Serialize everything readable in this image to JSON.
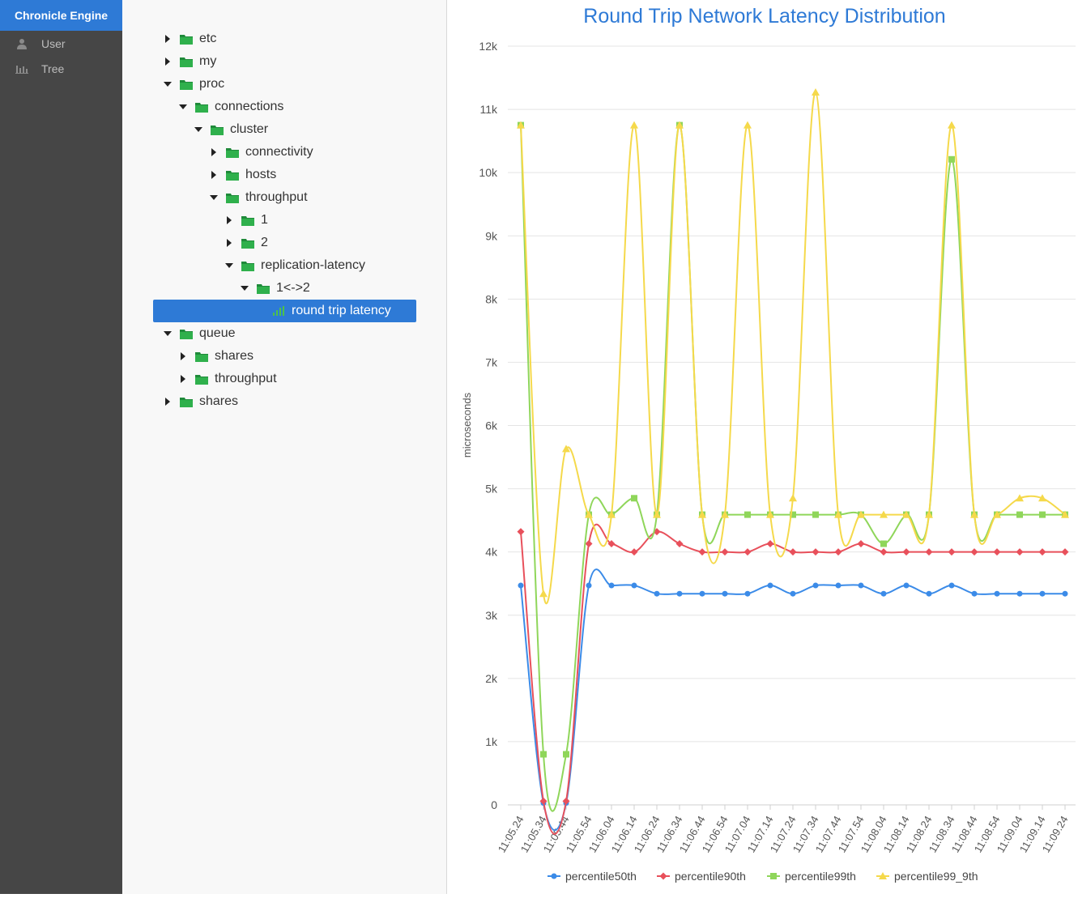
{
  "app": {
    "title": "Chronicle Engine"
  },
  "nav": [
    {
      "label": "User",
      "icon": "user-icon"
    },
    {
      "label": "Tree",
      "icon": "bar-chart-icon"
    }
  ],
  "tree": [
    {
      "label": "etc",
      "depth": 0,
      "state": "collapsed",
      "type": "folder"
    },
    {
      "label": "my",
      "depth": 0,
      "state": "collapsed",
      "type": "folder"
    },
    {
      "label": "proc",
      "depth": 0,
      "state": "expanded",
      "type": "folder"
    },
    {
      "label": "connections",
      "depth": 1,
      "state": "expanded",
      "type": "folder"
    },
    {
      "label": "cluster",
      "depth": 2,
      "state": "expanded",
      "type": "folder"
    },
    {
      "label": "connectivity",
      "depth": 3,
      "state": "collapsed",
      "type": "folder"
    },
    {
      "label": "hosts",
      "depth": 3,
      "state": "collapsed",
      "type": "folder"
    },
    {
      "label": "throughput",
      "depth": 3,
      "state": "expanded",
      "type": "folder"
    },
    {
      "label": "1",
      "depth": 4,
      "state": "collapsed",
      "type": "folder"
    },
    {
      "label": "2",
      "depth": 4,
      "state": "collapsed",
      "type": "folder"
    },
    {
      "label": "replication-latency",
      "depth": 4,
      "state": "expanded",
      "type": "folder"
    },
    {
      "label": "1<->2",
      "depth": 5,
      "state": "expanded",
      "type": "folder"
    },
    {
      "label": "round trip latency",
      "depth": 6,
      "state": "leaf",
      "type": "chart",
      "selected": true
    },
    {
      "label": "queue",
      "depth": 0,
      "state": "expanded",
      "type": "folder"
    },
    {
      "label": "shares",
      "depth": 1,
      "state": "collapsed",
      "type": "folder"
    },
    {
      "label": "throughput",
      "depth": 1,
      "state": "collapsed",
      "type": "folder"
    },
    {
      "label": "shares",
      "depth": 0,
      "state": "collapsed",
      "type": "folder"
    }
  ],
  "colors": {
    "brand": "#2e7ad6",
    "sidebar": "#464646",
    "folder": "#2fa84a"
  },
  "chart_data": {
    "type": "line",
    "title": "Round Trip Network Latency Distribution",
    "xlabel": "",
    "ylabel": "microseconds",
    "ylim": [
      0,
      12000
    ],
    "yticks": [
      "0",
      "1k",
      "2k",
      "3k",
      "4k",
      "5k",
      "6k",
      "7k",
      "8k",
      "9k",
      "10k",
      "11k",
      "12k"
    ],
    "grid": true,
    "legend_position": "bottom",
    "categories": [
      "11:05.24",
      "11:05.34",
      "11:05.44",
      "11:05.54",
      "11:06.04",
      "11:06.14",
      "11:06.24",
      "11:06.34",
      "11:06.44",
      "11:06.54",
      "11:07.04",
      "11:07.14",
      "11:07.24",
      "11:07.34",
      "11:07.44",
      "11:07.54",
      "11:08.04",
      "11:08.14",
      "11:08.24",
      "11:08.34",
      "11:08.44",
      "11:08.54",
      "11:09.04",
      "11:09.14",
      "11:09.24"
    ],
    "series": [
      {
        "name": "percentile50th",
        "color": "#3b8be8",
        "marker": "circle",
        "values": [
          3470,
          30,
          30,
          3470,
          3470,
          3470,
          3340,
          3340,
          3340,
          3340,
          3340,
          3470,
          3340,
          3470,
          3470,
          3470,
          3340,
          3470,
          3340,
          3470,
          3340,
          3340,
          3340,
          3340,
          3340
        ]
      },
      {
        "name": "percentile90th",
        "color": "#e8505b",
        "marker": "diamond",
        "values": [
          4320,
          60,
          60,
          4130,
          4130,
          4000,
          4320,
          4130,
          4000,
          4000,
          4000,
          4130,
          4000,
          4000,
          4000,
          4130,
          4000,
          4000,
          4000,
          4000,
          4000,
          4000,
          4000,
          4000,
          4000
        ]
      },
      {
        "name": "percentile99th",
        "color": "#8fd65a",
        "marker": "square",
        "values": [
          10750,
          800,
          800,
          4590,
          4590,
          4850,
          4590,
          10750,
          4590,
          4590,
          4590,
          4590,
          4590,
          4590,
          4590,
          4590,
          4130,
          4590,
          4590,
          10210,
          4590,
          4590,
          4590,
          4590,
          4590
        ]
      },
      {
        "name": "percentile99_9th",
        "color": "#f5d94b",
        "marker": "triangle",
        "values": [
          10750,
          3340,
          5630,
          4590,
          4590,
          10750,
          4590,
          10750,
          4590,
          4590,
          10750,
          4590,
          4850,
          11270,
          4590,
          4590,
          4590,
          4590,
          4590,
          10750,
          4590,
          4590,
          4850,
          4850,
          4590
        ]
      }
    ]
  }
}
